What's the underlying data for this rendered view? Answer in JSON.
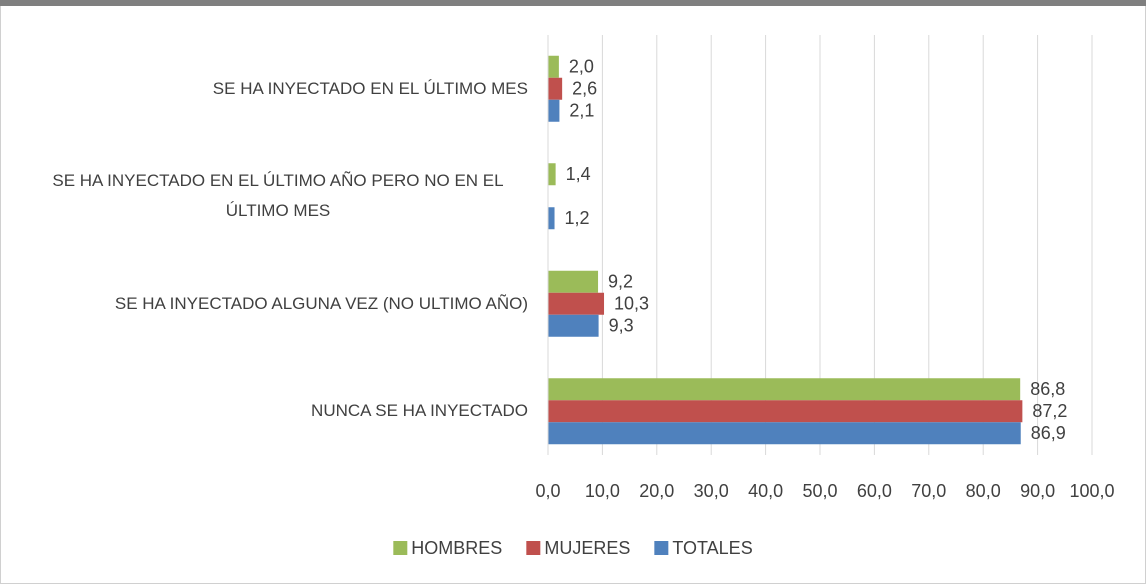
{
  "chart_data": {
    "type": "hbar",
    "categories": [
      "SE HA INYECTADO EN EL ÚLTIMO MES",
      "SE HA INYECTADO EN EL ÚLTIMO AÑO PERO NO EN EL ÚLTIMO MES",
      "SE HA INYECTADO ALGUNA VEZ (NO ULTIMO AÑO)",
      "NUNCA SE HA INYECTADO"
    ],
    "series": [
      {
        "name": "HOMBRES",
        "color": "#9bbb59",
        "values": [
          2.0,
          1.4,
          9.2,
          86.8
        ],
        "value_labels": [
          "2,0",
          "1,4",
          "9,2",
          "86,8"
        ]
      },
      {
        "name": "MUJERES",
        "color": "#c0504d",
        "values": [
          2.6,
          null,
          10.3,
          87.2
        ],
        "value_labels": [
          "2,6",
          null,
          "10,3",
          "87,2"
        ]
      },
      {
        "name": "TOTALES",
        "color": "#4f81bd",
        "values": [
          2.1,
          1.2,
          9.3,
          86.9
        ],
        "value_labels": [
          "2,1",
          "1,2",
          "9,3",
          "86,9"
        ]
      }
    ],
    "xlim": [
      0,
      100
    ],
    "xticks": [
      {
        "value": 0,
        "label": "0,0"
      },
      {
        "value": 10,
        "label": "10,0"
      },
      {
        "value": 20,
        "label": "20,0"
      },
      {
        "value": 30,
        "label": "30,0"
      },
      {
        "value": 40,
        "label": "40,0"
      },
      {
        "value": 50,
        "label": "50,0"
      },
      {
        "value": 60,
        "label": "60,0"
      },
      {
        "value": 70,
        "label": "70,0"
      },
      {
        "value": 80,
        "label": "80,0"
      },
      {
        "value": 90,
        "label": "90,0"
      },
      {
        "value": 100,
        "label": "100,0"
      }
    ],
    "grid": true,
    "legend": "bottom"
  }
}
